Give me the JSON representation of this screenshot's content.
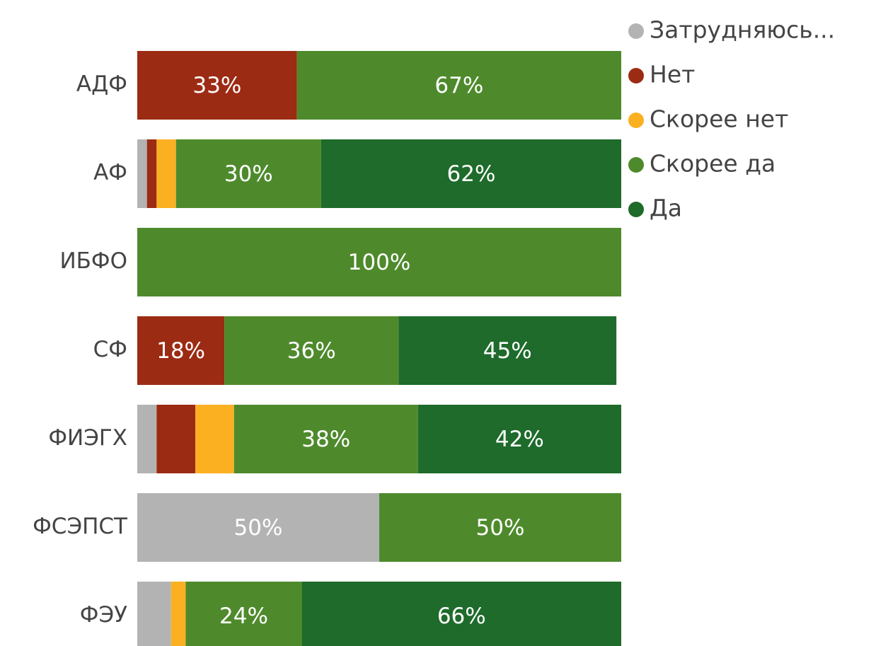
{
  "chart_data": {
    "type": "stacked-bar-horizontal",
    "categories": [
      "АДФ",
      "АФ",
      "ИБФО",
      "СФ",
      "ФИЭГХ",
      "ФСЭПСТ",
      "ФЭУ"
    ],
    "xlim": [
      0,
      100
    ],
    "legend": "top-right",
    "series": [
      {
        "name": "Затрудняюсь...",
        "color": "#b3b3b3",
        "values": [
          null,
          2,
          null,
          null,
          4,
          50,
          7
        ],
        "value_labels": [
          null,
          null,
          null,
          null,
          null,
          "50%",
          null
        ]
      },
      {
        "name": "Нет",
        "color": "#9c2b13",
        "values": [
          33,
          2,
          null,
          18,
          8,
          null,
          null
        ],
        "value_labels": [
          "33%",
          null,
          null,
          "18%",
          null,
          null,
          null
        ]
      },
      {
        "name": "Скорее нет",
        "color": "#fbb022",
        "values": [
          null,
          4,
          null,
          null,
          8,
          null,
          3
        ],
        "value_labels": [
          null,
          null,
          null,
          null,
          null,
          null,
          null
        ]
      },
      {
        "name": "Скорее да",
        "color": "#4e8a2c",
        "values": [
          67,
          30,
          100,
          36,
          38,
          50,
          24
        ],
        "value_labels": [
          "67%",
          "30%",
          "100%",
          "36%",
          "38%",
          "50%",
          "24%"
        ]
      },
      {
        "name": "Да",
        "color": "#1e6b2b",
        "values": [
          null,
          62,
          null,
          45,
          42,
          null,
          66
        ],
        "value_labels": [
          null,
          "62%",
          null,
          "45%",
          "42%",
          null,
          "66%"
        ]
      }
    ]
  }
}
